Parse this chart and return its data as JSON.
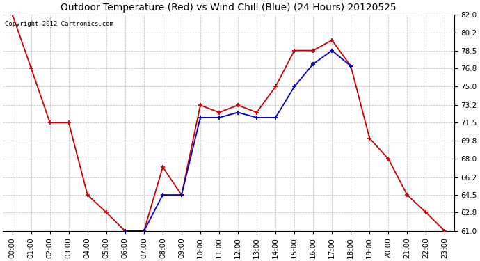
{
  "title": "Outdoor Temperature (Red) vs Wind Chill (Blue) (24 Hours) 20120525",
  "copyright_text": "Copyright 2012 Cartronics.com",
  "hours": [
    "00:00",
    "01:00",
    "02:00",
    "03:00",
    "04:00",
    "05:00",
    "06:00",
    "07:00",
    "08:00",
    "09:00",
    "10:00",
    "11:00",
    "12:00",
    "13:00",
    "14:00",
    "15:00",
    "16:00",
    "17:00",
    "18:00",
    "19:00",
    "20:00",
    "21:00",
    "22:00",
    "23:00"
  ],
  "red_temp": [
    82.0,
    76.8,
    71.5,
    71.5,
    64.5,
    62.8,
    61.0,
    61.0,
    67.2,
    64.5,
    73.2,
    72.5,
    73.2,
    72.5,
    75.0,
    78.5,
    78.5,
    79.5,
    77.0,
    70.0,
    68.0,
    64.5,
    62.8,
    61.0
  ],
  "blue_windchill": [
    null,
    null,
    null,
    null,
    null,
    null,
    61.0,
    61.0,
    64.5,
    64.5,
    72.0,
    72.0,
    72.5,
    72.0,
    72.0,
    75.0,
    77.2,
    78.5,
    77.0,
    null,
    null,
    null,
    null,
    null
  ],
  "ylim_min": 61.0,
  "ylim_max": 82.0,
  "yticks": [
    61.0,
    62.8,
    64.5,
    66.2,
    68.0,
    69.8,
    71.5,
    73.2,
    75.0,
    76.8,
    78.5,
    80.2,
    82.0
  ],
  "red_color": "#cc0000",
  "blue_color": "#0000cc",
  "grid_color": "#bbbbbb",
  "bg_color": "#ffffff",
  "title_fontsize": 10,
  "copyright_fontsize": 6.5,
  "tick_fontsize": 7.5,
  "fig_width": 6.9,
  "fig_height": 3.75,
  "dpi": 100
}
